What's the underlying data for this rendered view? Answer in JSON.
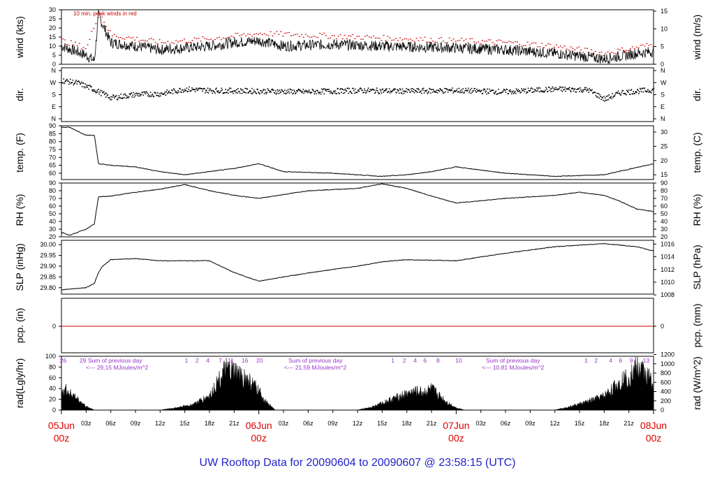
{
  "chart_data": [
    {
      "type": "line",
      "panel": "wind",
      "ylabel": "wind (kts)",
      "ylabel_right": "wind (m/s)",
      "annotation": "10 min. peak winds in red",
      "ylim": [
        0,
        30
      ],
      "yticks": [
        0,
        5,
        10,
        15,
        20,
        25,
        30
      ],
      "right_ylim": [
        0,
        15.4
      ],
      "right_yticks": [
        0,
        5,
        10,
        15
      ],
      "series": [
        {
          "values_x_hours": [
            0,
            3,
            4,
            4.5,
            6,
            12,
            18,
            21,
            24,
            27,
            33,
            39,
            48,
            54,
            60,
            66,
            70,
            72
          ],
          "values_y": [
            10,
            5,
            2,
            27,
            12,
            8,
            10,
            12,
            13,
            10,
            11,
            10,
            9,
            8,
            6,
            3,
            6,
            7
          ]
        },
        {
          "name": "10 min. peak winds in red",
          "color": "#cc0000",
          "values_x_hours": [
            0,
            3,
            4.5,
            6,
            12,
            18,
            24,
            30,
            36,
            42,
            48,
            54,
            60,
            66,
            72
          ],
          "values_y": [
            13,
            9,
            29,
            16,
            12,
            14,
            17,
            16,
            15,
            14,
            13,
            12,
            10,
            6,
            11
          ]
        }
      ]
    },
    {
      "type": "scatter",
      "panel": "direction",
      "ylabel": "dir.",
      "ylabel_right": "dir.",
      "yticks": [
        "N",
        "W",
        "S",
        "E",
        "N"
      ],
      "ylim_degrees": [
        0,
        360
      ],
      "trend_x_hours": [
        0,
        2,
        4,
        6,
        9,
        12,
        15,
        18,
        24,
        30,
        36,
        42,
        48,
        54,
        60,
        64,
        66,
        68,
        72
      ],
      "trend_y_degrees": [
        290,
        270,
        220,
        160,
        185,
        190,
        225,
        215,
        210,
        205,
        215,
        210,
        215,
        205,
        225,
        220,
        150,
        200,
        220
      ]
    },
    {
      "type": "line",
      "panel": "temperature",
      "ylabel": "temp. (F)",
      "ylabel_right": "temp. (C)",
      "ylim": [
        56,
        90
      ],
      "yticks": [
        60,
        65,
        70,
        75,
        80,
        85,
        90
      ],
      "right_yticks": [
        15,
        20,
        25,
        30
      ],
      "x_hours": [
        0,
        1,
        3,
        4,
        4.5,
        6,
        9,
        12,
        15,
        18,
        21,
        24,
        27,
        33,
        39,
        42,
        45,
        48,
        54,
        60,
        66,
        72
      ],
      "values": [
        89,
        89,
        84,
        84,
        66,
        65,
        64,
        61,
        59,
        61,
        63,
        66,
        61,
        60,
        58,
        59,
        61,
        64,
        60,
        58,
        59,
        66
      ]
    },
    {
      "type": "line",
      "panel": "humidity",
      "ylabel": "RH (%)",
      "ylabel_right": "RH (%)",
      "ylim": [
        20,
        90
      ],
      "yticks": [
        20,
        30,
        40,
        50,
        60,
        70,
        80,
        90
      ],
      "right_yticks": [
        20,
        30,
        40,
        50,
        60,
        70,
        80,
        90
      ],
      "x_hours": [
        0,
        1,
        3,
        4,
        4.5,
        6,
        9,
        12,
        15,
        18,
        21,
        24,
        30,
        36,
        39,
        42,
        45,
        48,
        54,
        60,
        63,
        66,
        68,
        70,
        72
      ],
      "values": [
        26,
        22,
        30,
        37,
        72,
        73,
        78,
        82,
        88,
        80,
        74,
        70,
        80,
        83,
        89,
        83,
        73,
        64,
        70,
        74,
        78,
        74,
        66,
        56,
        53
      ]
    },
    {
      "type": "line",
      "panel": "pressure",
      "ylabel": "SLP (inHg)",
      "ylabel_right": "SLP (hPa)",
      "ylim": [
        29.77,
        30.02
      ],
      "yticks": [
        29.8,
        29.85,
        29.9,
        29.95,
        30.0
      ],
      "ytick_labels": [
        "29.80",
        "29.85",
        "29.90",
        "29.95",
        "30.00"
      ],
      "right_yticks": [
        1008,
        1010,
        1012,
        1014,
        1016
      ],
      "x_hours": [
        0,
        3,
        4,
        4.5,
        5,
        6,
        9,
        12,
        18,
        21,
        24,
        27,
        33,
        36,
        39,
        42,
        48,
        54,
        60,
        66,
        70,
        72
      ],
      "values": [
        29.79,
        29.8,
        29.82,
        29.87,
        29.9,
        29.93,
        29.935,
        29.925,
        29.925,
        29.87,
        29.83,
        29.85,
        29.885,
        29.9,
        29.92,
        29.93,
        29.925,
        29.96,
        29.99,
        30.005,
        29.99,
        29.97
      ]
    },
    {
      "type": "line",
      "panel": "precipitation",
      "ylabel": "pcp. (in)",
      "ylabel_right": "pcp. (mm)",
      "yticks": [
        0
      ],
      "right_yticks": [
        0
      ],
      "values": [
        0,
        0
      ],
      "color": "#cc0000"
    },
    {
      "type": "area",
      "panel": "radiation",
      "ylabel": "rad(Lgly/hr)",
      "ylabel_right": "rad (W/m^2)",
      "ylim": [
        0,
        100
      ],
      "yticks": [
        0,
        20,
        40,
        60,
        80,
        100
      ],
      "right_yticks": [
        0,
        200,
        400,
        600,
        800,
        1000,
        1200
      ],
      "x_hours": [
        0,
        1,
        2,
        3,
        4,
        12,
        14,
        16,
        18,
        19,
        20,
        21,
        22,
        23,
        24,
        25,
        26,
        36,
        38,
        40,
        42,
        43,
        44,
        45,
        46,
        47,
        48,
        49,
        60,
        62,
        64,
        66,
        67,
        68,
        69,
        70,
        71,
        72
      ],
      "values": [
        47,
        38,
        22,
        8,
        0,
        0,
        5,
        12,
        30,
        60,
        85,
        80,
        72,
        60,
        40,
        15,
        0,
        0,
        8,
        22,
        35,
        40,
        38,
        45,
        30,
        15,
        5,
        0,
        0,
        8,
        18,
        30,
        45,
        62,
        72,
        90,
        80,
        55
      ],
      "sum_labels": [
        {
          "text": "Sum of previous day",
          "value": "<--- 29.15 MJoules/m^2"
        },
        {
          "text": "Sum of previous day",
          "value": "<--- 21.59 MJoules/m^2"
        },
        {
          "text": "Sum of previous day",
          "value": "<--- 10.81 MJoules/m^2"
        }
      ],
      "hour_labels": [
        {
          "hour": 0.2,
          "text": "26"
        },
        {
          "hour": 2.6,
          "text": "29"
        },
        {
          "hour": 15.2,
          "text": "1"
        },
        {
          "hour": 16.5,
          "text": "2"
        },
        {
          "hour": 17.8,
          "text": "4"
        },
        {
          "hour": 19.3,
          "text": "7"
        },
        {
          "hour": 20.6,
          "text": "11"
        },
        {
          "hour": 22.3,
          "text": "16"
        },
        {
          "hour": 24.1,
          "text": "20"
        },
        {
          "hour": 40.3,
          "text": "1"
        },
        {
          "hour": 41.7,
          "text": "2"
        },
        {
          "hour": 43.0,
          "text": "4"
        },
        {
          "hour": 44.2,
          "text": "6"
        },
        {
          "hour": 45.8,
          "text": "8"
        },
        {
          "hour": 48.3,
          "text": "10"
        },
        {
          "hour": 63.8,
          "text": "1"
        },
        {
          "hour": 65.0,
          "text": "2"
        },
        {
          "hour": 66.8,
          "text": "4"
        },
        {
          "hour": 68.0,
          "text": "6"
        },
        {
          "hour": 69.3,
          "text": "9"
        },
        {
          "hour": 71.1,
          "text": "13"
        }
      ]
    }
  ],
  "x_axis": {
    "range_hours": [
      0,
      72
    ],
    "tick_labels": [
      "03z",
      "06z",
      "09z",
      "12z",
      "15z",
      "18z",
      "21z",
      "03z",
      "06z",
      "09z",
      "12z",
      "15z",
      "18z",
      "21z",
      "03z",
      "06z",
      "09z",
      "12z",
      "15z",
      "18z",
      "21z"
    ],
    "tick_hours": [
      3,
      6,
      9,
      12,
      15,
      18,
      21,
      27,
      30,
      33,
      36,
      39,
      42,
      45,
      51,
      54,
      57,
      60,
      63,
      66,
      69
    ],
    "day_labels": [
      {
        "hour": 0,
        "date": "05Jun",
        "time": "00z"
      },
      {
        "hour": 24,
        "date": "06Jun",
        "time": "00z"
      },
      {
        "hour": 48,
        "date": "07Jun",
        "time": "00z"
      },
      {
        "hour": 72,
        "date": "08Jun",
        "time": "00z"
      }
    ]
  },
  "footer": {
    "title": "UW Rooftop Data for 20090604  to  20090607 @ 23:58:15  (UTC)"
  },
  "colors": {
    "title": "#2222cc",
    "day_labels": "#dd0000",
    "peak_wind": "#cc0000",
    "sum_annotation": "#9933cc"
  }
}
